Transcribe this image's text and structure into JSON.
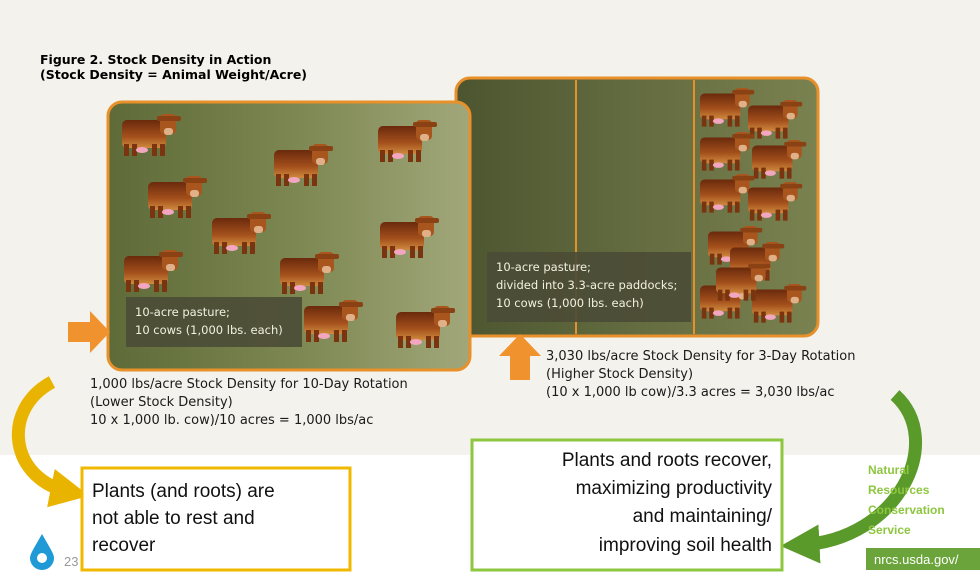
{
  "figure": {
    "title": "Figure 2. Stock Density in Action",
    "subtitle": "(Stock Density = Animal Weight/Acre)"
  },
  "left_pasture": {
    "label": [
      "10-acre pasture;",
      "10 cows (1,000 lbs. each)"
    ],
    "caption": [
      "1,000 lbs/acre Stock Density for 10-Day Rotation",
      "(Lower Stock Density)",
      "10 x 1,000 lb. cow)/10 acres = 1,000 lbs/ac"
    ]
  },
  "right_pasture": {
    "label": [
      "10-acre pasture;",
      "divided into 3.3-acre paddocks;",
      "10 cows (1,000 lbs. each)"
    ],
    "caption": [
      "3,030 lbs/acre Stock Density for 3-Day Rotation",
      "(Higher Stock Density)",
      "(10 x 1,000 lb cow)/3.3 acres = 3,030 lbs/ac"
    ]
  },
  "callouts": [
    {
      "lines": [
        "Plants (and roots) are",
        "not able to rest and",
        "recover"
      ]
    },
    {
      "lines": [
        "Plants and roots recover,",
        "maximizing productivity",
        "and maintaining/",
        "improving soil health"
      ]
    }
  ],
  "footer": {
    "page": "23",
    "agency": [
      "Natural",
      "Resources",
      "Conservation",
      "Service"
    ],
    "url": "nrcs.usda.gov/"
  }
}
